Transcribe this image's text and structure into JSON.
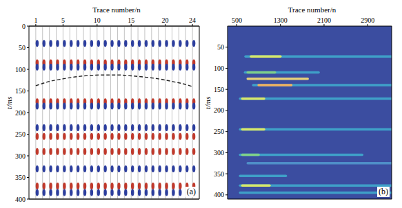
{
  "chart_data": [
    {
      "type": "wiggle",
      "panel_label": "(a)",
      "xlabel": "Trace number/n",
      "ylabel": "t/ms",
      "xlim": [
        0,
        25
      ],
      "xticks": [
        1,
        5,
        10,
        15,
        20,
        24
      ],
      "ylim": [
        0,
        400
      ],
      "yticks": [
        0,
        50,
        100,
        150,
        200,
        250,
        300,
        350,
        400
      ],
      "grid": true,
      "series": [
        {
          "line_style": "dashed",
          "color": "#222222",
          "x": [
            1,
            3,
            5,
            7,
            9,
            11,
            13,
            15,
            17,
            19,
            21,
            23,
            24
          ],
          "values": [
            138,
            128,
            122,
            117,
            114,
            113,
            113,
            115,
            118,
            122,
            128,
            135,
            140
          ]
        }
      ],
      "events": [
        {
          "t": 40,
          "color": "#2c3e9e"
        },
        {
          "t": 85,
          "color": "#c0392b"
        },
        {
          "t": 95,
          "color": "#2c3e9e"
        },
        {
          "t": 175,
          "color": "#c0392b"
        },
        {
          "t": 185,
          "color": "#2c3e9e"
        },
        {
          "t": 235,
          "color": "#2c3e9e"
        },
        {
          "t": 255,
          "color": "#c0392b"
        },
        {
          "t": 290,
          "color": "#c0392b"
        },
        {
          "t": 330,
          "color": "#2c3e9e"
        },
        {
          "t": 370,
          "color": "#c0392b"
        },
        {
          "t": 385,
          "color": "#2c3e9e"
        }
      ]
    },
    {
      "type": "heatmap",
      "panel_label": "(b)",
      "xlabel": "Trace number/n",
      "ylabel": "t/ms",
      "xlim": [
        330,
        3340
      ],
      "xticks": [
        500,
        1300,
        2100,
        2900
      ],
      "ylim": [
        0,
        410
      ],
      "yticks": [
        50,
        100,
        150,
        200,
        250,
        300,
        350,
        400
      ],
      "grid": false,
      "color": "#3b4da0",
      "streaks": [
        {
          "t": 72,
          "x": [
            660,
            3340
          ],
          "color": "#3fa0c8"
        },
        {
          "t": 72,
          "x": [
            760,
            1300
          ],
          "color": "#d8e86a"
        },
        {
          "t": 110,
          "x": [
            650,
            2000
          ],
          "color": "#3fa0c8"
        },
        {
          "t": 110,
          "x": [
            700,
            1200
          ],
          "color": "#7fd08a"
        },
        {
          "t": 125,
          "x": [
            700,
            1800
          ],
          "color": "#e6d07a"
        },
        {
          "t": 140,
          "x": [
            800,
            3340
          ],
          "color": "#3fa0c8"
        },
        {
          "t": 140,
          "x": [
            900,
            1500
          ],
          "color": "#f0b060"
        },
        {
          "t": 172,
          "x": [
            560,
            3340
          ],
          "color": "#3fa0c8"
        },
        {
          "t": 172,
          "x": [
            600,
            1000
          ],
          "color": "#d8e86a"
        },
        {
          "t": 245,
          "x": [
            560,
            3340
          ],
          "color": "#3fa0c8"
        },
        {
          "t": 245,
          "x": [
            600,
            1000
          ],
          "color": "#d8e86a"
        },
        {
          "t": 305,
          "x": [
            560,
            2800
          ],
          "color": "#3fa0c8"
        },
        {
          "t": 305,
          "x": [
            600,
            900
          ],
          "color": "#7fd08a"
        },
        {
          "t": 325,
          "x": [
            700,
            3340
          ],
          "color": "#4f8fc8"
        },
        {
          "t": 355,
          "x": [
            560,
            1400
          ],
          "color": "#3fa0c8"
        },
        {
          "t": 378,
          "x": [
            560,
            3340
          ],
          "color": "#3fa0c8"
        },
        {
          "t": 378,
          "x": [
            600,
            1100
          ],
          "color": "#d8e86a"
        },
        {
          "t": 395,
          "x": [
            560,
            3340
          ],
          "color": "#3fa0c8"
        }
      ]
    }
  ]
}
